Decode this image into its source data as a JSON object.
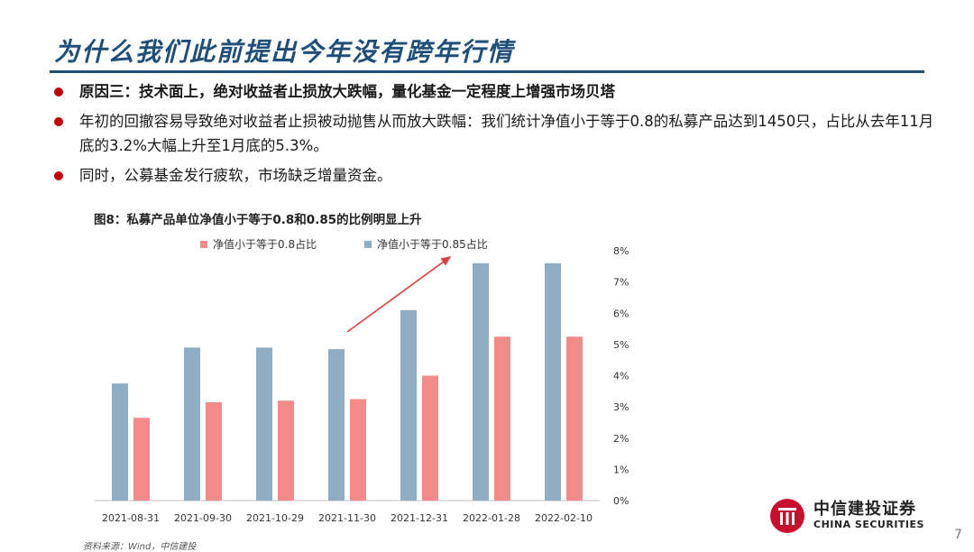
{
  "slide": {
    "title": "为什么我们此前提出今年没有跨年行情",
    "page_number": "7",
    "bullets": [
      {
        "text": "原因三：技术面上，绝对收益者止损放大跌幅，量化基金一定程度上增强市场贝塔",
        "strong": true
      },
      {
        "text": "年初的回撤容易导致绝对收益者止损被动抛售从而放大跌幅：我们统计净值小于等于0.8的私募产品达到1450只，占比从去年11月底的3.2%大幅上升至1月底的5.3%。",
        "strong": false
      },
      {
        "text": "同时，公募基金发行疲软，市场缺乏增量资金。",
        "strong": false
      }
    ],
    "source": "资料来源：Wind，中信建投",
    "logo": {
      "cn": "中信建投证券",
      "en": "CHINA SECURITIES"
    }
  },
  "colors": {
    "title": "#1f4e79",
    "bullet": "#c00000",
    "series_a": "#f48b8b",
    "series_b": "#8fadc4",
    "arrow": "#d94040"
  },
  "chart_data": {
    "type": "bar",
    "title": "图8：私募产品单位净值小于等于0.8和0.85的比例明显上升",
    "categories": [
      "2021-08-31",
      "2021-09-30",
      "2021-10-29",
      "2021-11-30",
      "2021-12-31",
      "2022-01-28",
      "2022-02-10"
    ],
    "series": [
      {
        "name": "净值小于等于0.8占比",
        "values": [
          2.65,
          3.15,
          3.2,
          3.25,
          4.0,
          5.25,
          5.25
        ]
      },
      {
        "name": "净值小于等于0.85占比",
        "values": [
          3.75,
          4.9,
          4.9,
          4.85,
          6.1,
          7.6,
          7.6
        ]
      }
    ],
    "y_ticks": [
      "0%",
      "1%",
      "2%",
      "3%",
      "4%",
      "5%",
      "6%",
      "7%",
      "8%"
    ],
    "ylim": [
      0,
      8
    ],
    "y_axis_side": "right",
    "grid": false,
    "legend": "top",
    "annotation": "upward trend arrow"
  }
}
